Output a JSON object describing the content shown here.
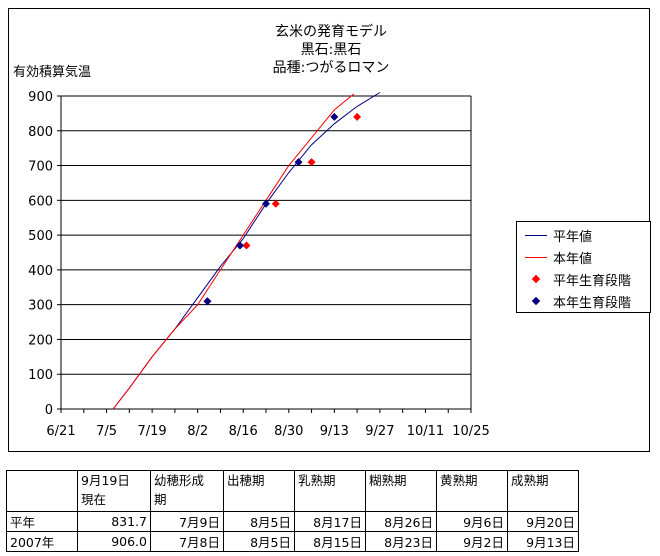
{
  "chart_data": {
    "type": "line",
    "title_lines": [
      "玄米の発育モデル",
      "黒石:黒石",
      "品種:つがるロマン"
    ],
    "ylabel": "有効積算気温",
    "ylim": [
      0,
      900
    ],
    "yticks": [
      0,
      100,
      200,
      300,
      400,
      500,
      600,
      700,
      800,
      900
    ],
    "xlim_days_from_jun21": [
      0,
      126
    ],
    "xticks": [
      "6/21",
      "7/5",
      "7/19",
      "8/2",
      "8/16",
      "8/30",
      "9/13",
      "9/27",
      "10/11",
      "10/25"
    ],
    "grid": "horizontal",
    "legend_position": "right",
    "series": [
      {
        "name": "平年値",
        "kind": "line",
        "color": "#000080",
        "x": [
          "7/7",
          "7/12",
          "7/19",
          "7/26",
          "8/2",
          "8/9",
          "8/16",
          "8/23",
          "8/30",
          "9/6",
          "9/13",
          "9/20",
          "9/27"
        ],
        "y": [
          0,
          60,
          150,
          230,
          320,
          410,
          490,
          590,
          680,
          760,
          820,
          870,
          910
        ]
      },
      {
        "name": "本年値",
        "kind": "line",
        "color": "#ff0000",
        "x": [
          "7/7",
          "7/12",
          "7/19",
          "7/26",
          "8/2",
          "8/9",
          "8/16",
          "8/23",
          "8/30",
          "9/6",
          "9/13",
          "9/19"
        ],
        "y": [
          0,
          60,
          150,
          230,
          300,
          400,
          500,
          600,
          700,
          780,
          860,
          906
        ]
      },
      {
        "name": "平年生育段階",
        "kind": "marker",
        "color": "#ff0000",
        "x": [
          "8/5",
          "8/17",
          "8/26",
          "9/6",
          "9/20"
        ],
        "y": [
          310,
          470,
          590,
          710,
          840
        ]
      },
      {
        "name": "本年生育段階",
        "kind": "marker",
        "color": "#000080",
        "x": [
          "8/5",
          "8/15",
          "8/23",
          "9/2",
          "9/13"
        ],
        "y": [
          310,
          470,
          590,
          710,
          840
        ]
      }
    ]
  },
  "table": {
    "header": [
      "",
      "9月19日\n現在",
      "幼穂形成\n期",
      "出穂期",
      "乳熟期",
      "糊熟期",
      "黄熟期",
      "成熟期"
    ],
    "rows": [
      [
        "平年",
        "831.7",
        "7月9日",
        "8月5日",
        "8月17日",
        "8月26日",
        "9月6日",
        "9月20日"
      ],
      [
        "2007年",
        "906.0",
        "7月8日",
        "8月5日",
        "8月15日",
        "8月23日",
        "9月2日",
        "9月13日"
      ]
    ]
  }
}
